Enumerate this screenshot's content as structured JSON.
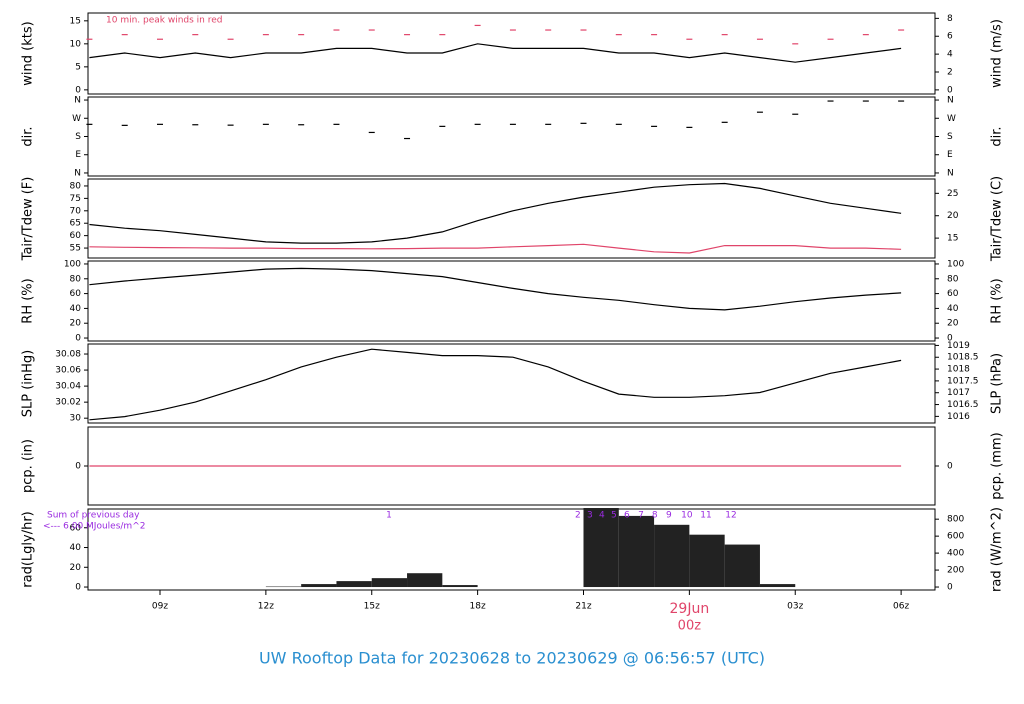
{
  "title": "UW Rooftop Data for 20230628  to  20230629 @ 06:56:57  (UTC)",
  "chart_data": [
    {
      "type": "line",
      "ylabel": "wind (kts)",
      "y2label": "wind (m/s)",
      "annotation": "10 min. peak winds in red",
      "xlim": [
        6.96,
        30.96
      ],
      "ylim": [
        -0.9,
        16.7
      ],
      "yticks": [
        0,
        5,
        10,
        15
      ],
      "y2lim": [
        -0.46,
        8.6
      ],
      "y2ticks": [
        0,
        2,
        4,
        6,
        8
      ],
      "x": [
        7,
        8,
        9,
        10,
        11,
        12,
        13,
        14,
        15,
        16,
        17,
        18,
        19,
        20,
        21,
        22,
        23,
        24,
        25,
        26,
        27,
        28,
        29,
        30
      ],
      "series": [
        {
          "color": "#000000",
          "style": "line",
          "values": [
            7,
            8,
            7,
            8,
            7,
            8,
            8,
            9,
            9,
            8,
            8,
            10,
            9,
            9,
            9,
            8,
            8,
            7,
            8,
            7,
            6,
            7,
            8,
            9
          ]
        },
        {
          "color": "#e0456a",
          "style": "dash",
          "values": [
            11,
            12,
            11,
            12,
            11,
            12,
            12,
            13,
            13,
            12,
            12,
            14,
            13,
            13,
            13,
            12,
            12,
            11,
            12,
            11,
            10,
            11,
            12,
            13
          ]
        }
      ]
    },
    {
      "type": "scatter",
      "ylabel": "dir.",
      "y2label": "dir.",
      "xlim": [
        6.96,
        30.96
      ],
      "ylim": [
        -15,
        375
      ],
      "yticks": [
        {
          "value": 0,
          "label": "N"
        },
        {
          "value": 90,
          "label": "E"
        },
        {
          "value": 180,
          "label": "S"
        },
        {
          "value": 270,
          "label": "W"
        },
        {
          "value": 360,
          "label": "N"
        }
      ],
      "y2lim": [
        -15,
        375
      ],
      "y2ticks": [
        {
          "value": 0,
          "label": "N"
        },
        {
          "value": 90,
          "label": "E"
        },
        {
          "value": 180,
          "label": "S"
        },
        {
          "value": 270,
          "label": "W"
        },
        {
          "value": 360,
          "label": "N"
        }
      ],
      "x": [
        7,
        8,
        9,
        10,
        11,
        12,
        13,
        14,
        15,
        16,
        17,
        18,
        19,
        20,
        21,
        22,
        23,
        24,
        25,
        26,
        27,
        28,
        29,
        30
      ],
      "series": [
        {
          "color": "#000000",
          "style": "dash",
          "values": [
            240,
            235,
            240,
            238,
            236,
            240,
            238,
            240,
            200,
            170,
            230,
            240,
            240,
            240,
            245,
            240,
            230,
            225,
            250,
            300,
            290,
            355,
            355,
            355
          ]
        }
      ]
    },
    {
      "type": "line",
      "ylabel": "Tair/Tdew (F)",
      "y2label": "Tair/Tdew (C)",
      "xlim": [
        6.96,
        30.96
      ],
      "ylim": [
        51,
        82.8
      ],
      "yticks": [
        55,
        60,
        65,
        70,
        75,
        80
      ],
      "y2lim": [
        10.56,
        28.2
      ],
      "y2ticks": [
        15,
        20,
        25
      ],
      "x": [
        7,
        8,
        9,
        10,
        11,
        12,
        13,
        14,
        15,
        16,
        17,
        18,
        19,
        20,
        21,
        22,
        23,
        24,
        25,
        26,
        27,
        28,
        29,
        30
      ],
      "series": [
        {
          "color": "#000000",
          "style": "line",
          "values": [
            64.5,
            63,
            62,
            60.5,
            59,
            57.5,
            57,
            57,
            57.5,
            59,
            61.5,
            66,
            70,
            73,
            75.5,
            77.5,
            79.5,
            80.5,
            81,
            79,
            76,
            73,
            71,
            69
          ]
        },
        {
          "color": "#e0456a",
          "style": "line",
          "values": [
            55.5,
            55.3,
            55.2,
            55.1,
            55,
            55,
            54.8,
            54.8,
            54.7,
            54.8,
            55,
            55,
            55.5,
            56,
            56.5,
            55,
            53.5,
            53,
            56,
            56,
            56,
            55,
            55,
            54.5
          ]
        }
      ]
    },
    {
      "type": "line",
      "ylabel": "RH (%)",
      "y2label": "RH (%)",
      "xlim": [
        6.96,
        30.96
      ],
      "ylim": [
        -4,
        104
      ],
      "yticks": [
        0,
        20,
        40,
        60,
        80,
        100
      ],
      "y2lim": [
        -4,
        104
      ],
      "y2ticks": [
        0,
        20,
        40,
        60,
        80,
        100
      ],
      "x": [
        7,
        8,
        9,
        10,
        11,
        12,
        13,
        14,
        15,
        16,
        17,
        18,
        19,
        20,
        21,
        22,
        23,
        24,
        25,
        26,
        27,
        28,
        29,
        30
      ],
      "series": [
        {
          "color": "#000000",
          "style": "line",
          "values": [
            72,
            77,
            81,
            85,
            89,
            93,
            94,
            93,
            91,
            87,
            83,
            75,
            67,
            60,
            55,
            51,
            45,
            40,
            38,
            43,
            49,
            54,
            58,
            61
          ]
        }
      ]
    },
    {
      "type": "line",
      "ylabel": "SLP (inHg)",
      "y2label": "SLP (hPa)",
      "xlim": [
        6.96,
        30.96
      ],
      "ylim": [
        29.994,
        30.0925
      ],
      "yticks": [
        30.0,
        30.02,
        30.04,
        30.06,
        30.08
      ],
      "y2lim": [
        1015.72,
        1019.06
      ],
      "y2ticks": [
        1016,
        1016.5,
        1017,
        1017.5,
        1018,
        1018.5,
        1019
      ],
      "x": [
        7,
        8,
        9,
        10,
        11,
        12,
        13,
        14,
        15,
        16,
        17,
        18,
        19,
        20,
        21,
        22,
        23,
        24,
        25,
        26,
        27,
        28,
        29,
        30
      ],
      "series": [
        {
          "color": "#000000",
          "style": "line",
          "values": [
            29.998,
            30.002,
            30.01,
            30.02,
            30.034,
            30.048,
            30.064,
            30.076,
            30.086,
            30.082,
            30.078,
            30.078,
            30.076,
            30.064,
            30.046,
            30.03,
            30.026,
            30.026,
            30.028,
            30.032,
            30.044,
            30.056,
            30.064,
            30.072
          ]
        }
      ]
    },
    {
      "type": "line",
      "ylabel": "pcp. (in)",
      "y2label": "pcp. (mm)",
      "xlim": [
        6.96,
        30.96
      ],
      "ylim": [
        -1,
        1
      ],
      "yticks": [
        0
      ],
      "y2lim": [
        -25.4,
        25.4
      ],
      "y2ticks": [
        0
      ],
      "x": [
        7,
        8,
        9,
        10,
        11,
        12,
        13,
        14,
        15,
        16,
        17,
        18,
        19,
        20,
        21,
        22,
        23,
        24,
        25,
        26,
        27,
        28,
        29,
        30
      ],
      "series": [
        {
          "color": "#e0456a",
          "style": "line",
          "values": [
            0,
            0,
            0,
            0,
            0,
            0,
            0,
            0,
            0,
            0,
            0,
            0,
            0,
            0,
            0,
            0,
            0,
            0,
            0,
            0,
            0,
            0,
            0,
            0
          ]
        }
      ]
    },
    {
      "type": "bar",
      "ylabel": "rad(Lgly/hr)",
      "y2label": "rad (W/m^2)",
      "annotations": [
        "Sum of previous day",
        "<--- 6.00 MJoules/m^2"
      ],
      "xlim": [
        6.96,
        30.96
      ],
      "ylim": [
        -3,
        79
      ],
      "yticks": [
        0,
        20,
        40,
        60
      ],
      "y2lim": [
        -35,
        920
      ],
      "y2ticks": [
        0,
        200,
        400,
        600,
        800
      ],
      "xticks": [
        {
          "value": 9,
          "label": "09z"
        },
        {
          "value": 12,
          "label": "12z"
        },
        {
          "value": 15,
          "label": "15z"
        },
        {
          "value": 18,
          "label": "18z"
        },
        {
          "value": 21,
          "label": "21z"
        },
        {
          "value": 24,
          "label": "00z"
        },
        {
          "value": 27,
          "label": "03z"
        },
        {
          "value": 30,
          "label": "06z"
        }
      ],
      "date_label": "29Jun",
      "hour_marks": {
        "x": [
          15.49,
          20.84,
          21.18,
          21.52,
          21.86,
          22.23,
          22.63,
          23.02,
          23.42,
          23.93,
          24.47,
          25.18
        ],
        "values": [
          1,
          2,
          3,
          4,
          5,
          6,
          7,
          8,
          9,
          10,
          11,
          12
        ]
      },
      "x": [
        7,
        8,
        9,
        10,
        11,
        12,
        13,
        14,
        15,
        16,
        17,
        18,
        19,
        20,
        21,
        22,
        23,
        24,
        25,
        26,
        27,
        28,
        29,
        30
      ],
      "series": [
        {
          "color": "#222222",
          "style": "bar",
          "values": [
            0,
            0,
            0,
            0,
            0,
            0.5,
            3,
            6,
            9,
            14,
            2,
            0,
            0,
            0,
            80,
            72,
            63,
            53,
            43,
            3,
            0,
            0,
            0,
            0
          ]
        }
      ]
    }
  ]
}
